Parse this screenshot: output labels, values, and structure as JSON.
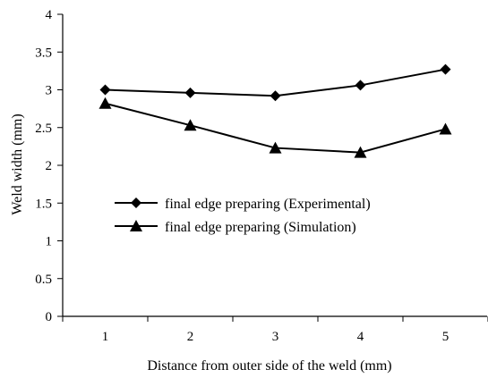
{
  "chart_data": {
    "type": "line",
    "title": "",
    "xlabel": "Distance from outer side of the weld (mm)",
    "ylabel": "Weld width (mm)",
    "categories": [
      "1",
      "2",
      "3",
      "4",
      "5"
    ],
    "x": [
      1,
      2,
      3,
      4,
      5
    ],
    "ylim": [
      0,
      4
    ],
    "yticks": [
      "0",
      "0.5",
      "1",
      "1.5",
      "2",
      "2.5",
      "3",
      "3.5",
      "4"
    ],
    "grid": false,
    "legend_position": "center",
    "series": [
      {
        "name": "final edge preparing (Experimental)",
        "marker": "diamond",
        "values": [
          3.0,
          2.96,
          2.92,
          3.06,
          3.27
        ]
      },
      {
        "name": "final edge preparing (Simulation)",
        "marker": "triangle",
        "values": [
          2.82,
          2.53,
          2.23,
          2.17,
          2.48
        ]
      }
    ]
  }
}
